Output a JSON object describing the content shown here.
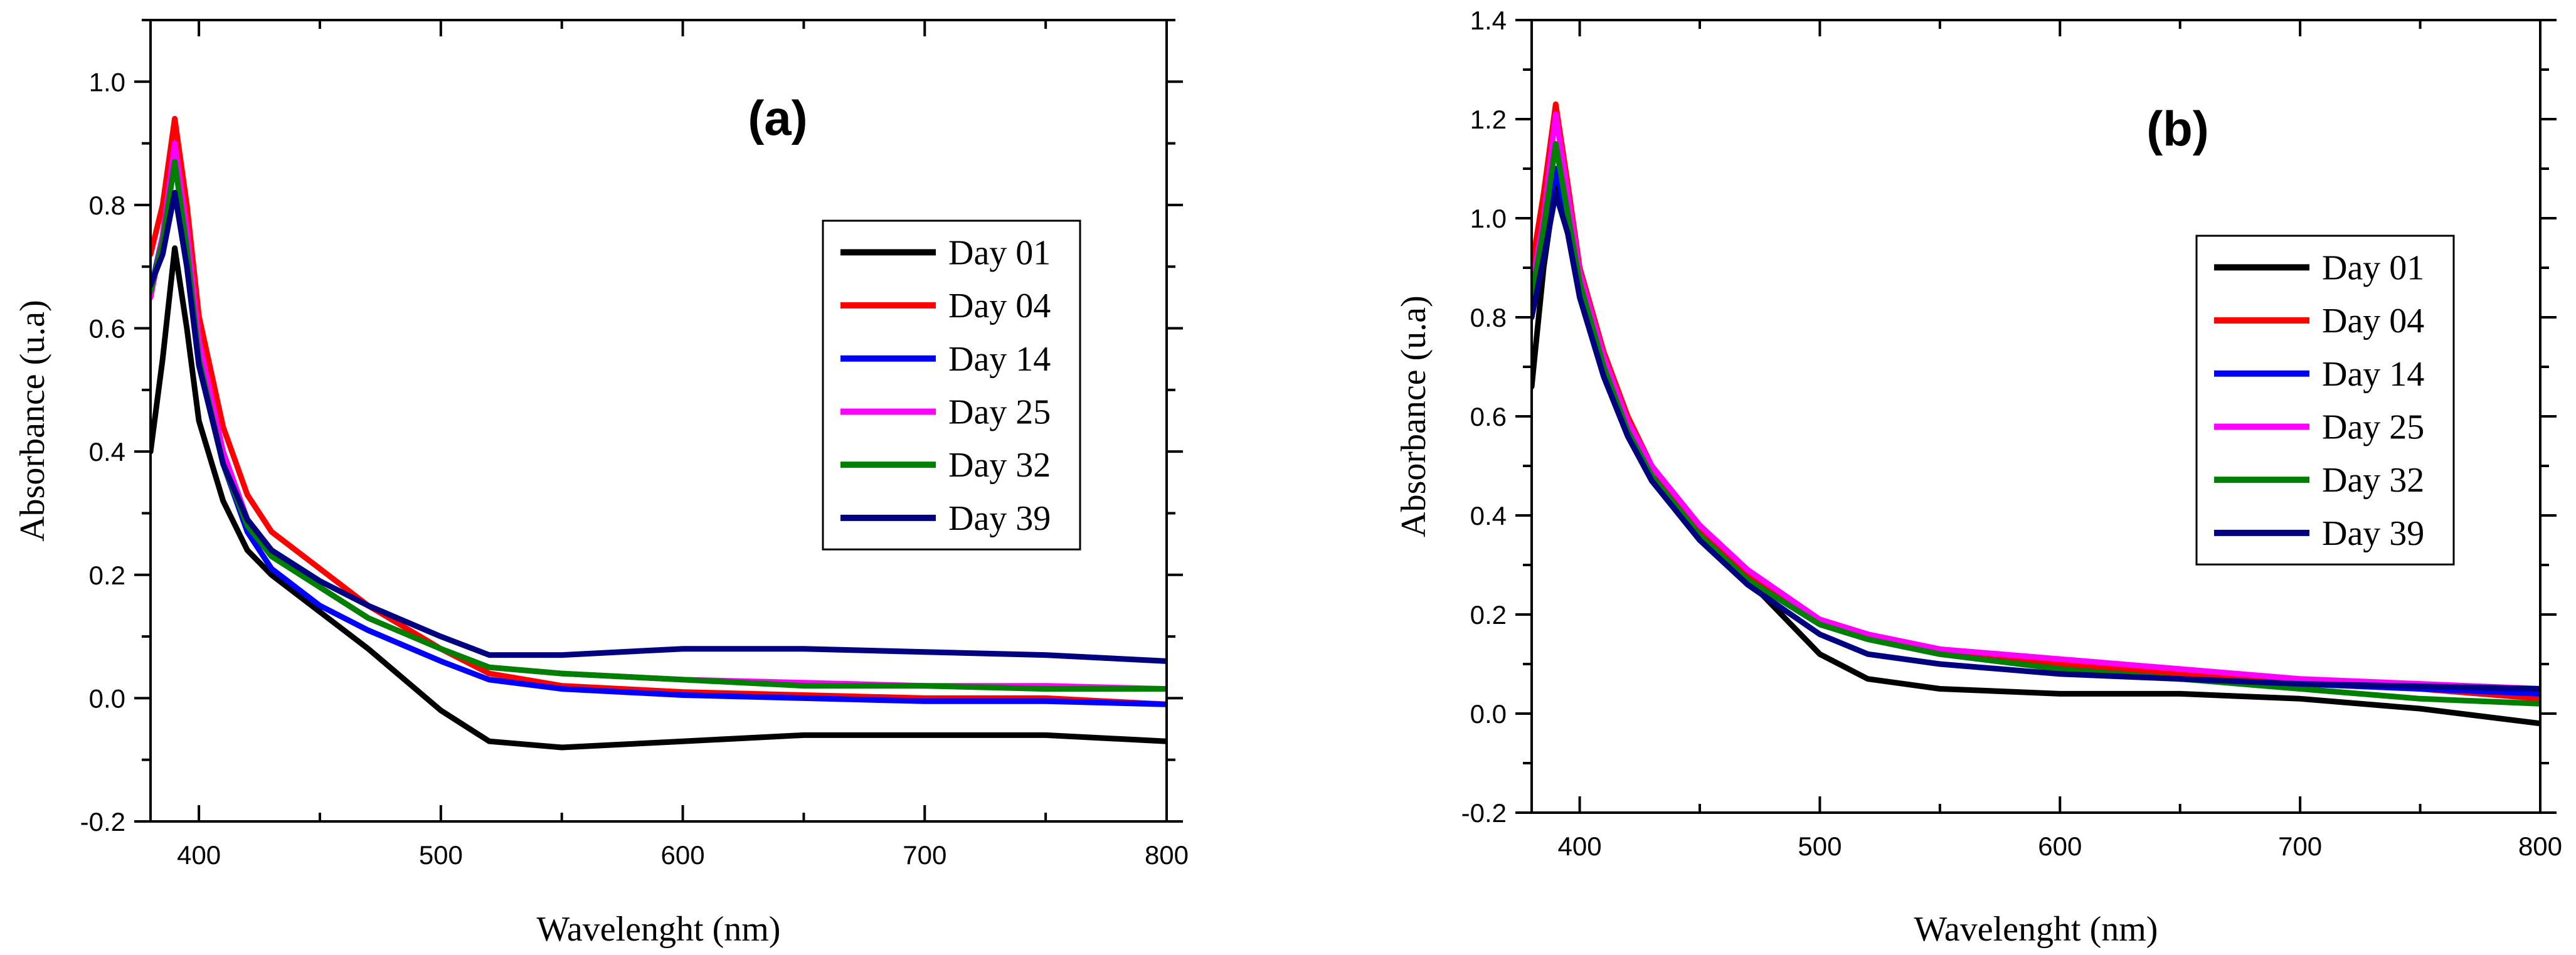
{
  "chart_data": [
    {
      "type": "line",
      "title": "(a)",
      "xlabel": "Wavelenght (nm)",
      "ylabel": "Absorbance (u.a)",
      "xlim": [
        380,
        800
      ],
      "ylim": [
        -0.2,
        1.1
      ],
      "x_ticks": [
        400,
        500,
        600,
        700,
        800
      ],
      "x_tick_labels": [
        "400",
        "500",
        "600",
        "700",
        "800"
      ],
      "y_ticks": [
        -0.2,
        0.0,
        0.2,
        0.4,
        0.6,
        0.8,
        1.0
      ],
      "y_tick_labels": [
        "-0.2",
        "0.0",
        "0.2",
        "0.4",
        "0.6",
        "0.8",
        "1.0"
      ],
      "legend_position": "right",
      "x": [
        380,
        385,
        390,
        395,
        400,
        410,
        420,
        430,
        450,
        470,
        500,
        520,
        550,
        600,
        650,
        700,
        750,
        800
      ],
      "series": [
        {
          "name": "Day 01",
          "color": "#000000",
          "values": [
            0.4,
            0.55,
            0.73,
            0.6,
            0.45,
            0.32,
            0.24,
            0.2,
            0.14,
            0.08,
            -0.02,
            -0.07,
            -0.08,
            -0.07,
            -0.06,
            -0.06,
            -0.06,
            -0.07
          ]
        },
        {
          "name": "Day 04",
          "color": "#ff0000",
          "values": [
            0.72,
            0.8,
            0.94,
            0.8,
            0.62,
            0.44,
            0.33,
            0.27,
            0.21,
            0.15,
            0.08,
            0.04,
            0.02,
            0.01,
            0.005,
            0.0,
            0.0,
            -0.01
          ]
        },
        {
          "name": "Day 14",
          "color": "#0000ff",
          "values": [
            0.66,
            0.75,
            0.9,
            0.75,
            0.56,
            0.38,
            0.27,
            0.21,
            0.15,
            0.11,
            0.06,
            0.03,
            0.015,
            0.005,
            0.0,
            -0.005,
            -0.005,
            -0.01
          ]
        },
        {
          "name": "Day 25",
          "color": "#ff00ff",
          "values": [
            0.65,
            0.75,
            0.9,
            0.76,
            0.58,
            0.4,
            0.29,
            0.24,
            0.18,
            0.13,
            0.08,
            0.05,
            0.04,
            0.03,
            0.025,
            0.02,
            0.02,
            0.015
          ]
        },
        {
          "name": "Day 32",
          "color": "#008000",
          "values": [
            0.66,
            0.74,
            0.87,
            0.73,
            0.55,
            0.38,
            0.28,
            0.23,
            0.18,
            0.13,
            0.08,
            0.05,
            0.04,
            0.03,
            0.02,
            0.02,
            0.015,
            0.015
          ]
        },
        {
          "name": "Day 39",
          "color": "#000080",
          "values": [
            0.67,
            0.72,
            0.82,
            0.7,
            0.54,
            0.38,
            0.29,
            0.24,
            0.19,
            0.15,
            0.1,
            0.07,
            0.07,
            0.08,
            0.08,
            0.075,
            0.07,
            0.06
          ]
        }
      ]
    },
    {
      "type": "line",
      "title": "(b)",
      "xlabel": "Wavelenght (nm)",
      "ylabel": "Absorbance (u.a)",
      "xlim": [
        380,
        800
      ],
      "ylim": [
        -0.2,
        1.4
      ],
      "x_ticks": [
        400,
        500,
        600,
        700,
        800
      ],
      "x_tick_labels": [
        "400",
        "500",
        "600",
        "700",
        "800"
      ],
      "y_ticks": [
        -0.2,
        0.0,
        0.2,
        0.4,
        0.6,
        0.8,
        1.0,
        1.2,
        1.4
      ],
      "y_tick_labels": [
        "-0.2",
        "0.0",
        "0.2",
        "0.4",
        "0.6",
        "0.8",
        "1.0",
        "1.2",
        "1.4"
      ],
      "legend_position": "right",
      "x": [
        380,
        385,
        390,
        395,
        400,
        410,
        420,
        430,
        450,
        470,
        500,
        520,
        550,
        600,
        650,
        700,
        750,
        800
      ],
      "series": [
        {
          "name": "Day 01",
          "color": "#000000",
          "values": [
            0.66,
            0.9,
            1.07,
            0.98,
            0.86,
            0.7,
            0.57,
            0.48,
            0.37,
            0.27,
            0.12,
            0.07,
            0.05,
            0.04,
            0.04,
            0.03,
            0.01,
            -0.02
          ]
        },
        {
          "name": "Day 04",
          "color": "#ff0000",
          "values": [
            0.9,
            1.05,
            1.23,
            1.07,
            0.9,
            0.73,
            0.6,
            0.5,
            0.37,
            0.28,
            0.19,
            0.16,
            0.13,
            0.1,
            0.08,
            0.06,
            0.05,
            0.03
          ]
        },
        {
          "name": "Day 14",
          "color": "#0000ff",
          "values": [
            0.82,
            0.95,
            1.1,
            1.0,
            0.86,
            0.7,
            0.57,
            0.48,
            0.36,
            0.27,
            0.18,
            0.15,
            0.12,
            0.09,
            0.07,
            0.06,
            0.05,
            0.04
          ]
        },
        {
          "name": "Day 25",
          "color": "#ff00ff",
          "values": [
            0.86,
            1.0,
            1.21,
            1.05,
            0.89,
            0.72,
            0.59,
            0.5,
            0.38,
            0.29,
            0.19,
            0.16,
            0.13,
            0.11,
            0.09,
            0.07,
            0.06,
            0.05
          ]
        },
        {
          "name": "Day 32",
          "color": "#008000",
          "values": [
            0.84,
            0.98,
            1.15,
            1.01,
            0.87,
            0.7,
            0.57,
            0.48,
            0.36,
            0.27,
            0.18,
            0.15,
            0.12,
            0.09,
            0.07,
            0.05,
            0.03,
            0.02
          ]
        },
        {
          "name": "Day 39",
          "color": "#000080",
          "values": [
            0.8,
            0.92,
            1.05,
            0.97,
            0.84,
            0.68,
            0.56,
            0.47,
            0.35,
            0.26,
            0.16,
            0.12,
            0.1,
            0.08,
            0.07,
            0.06,
            0.055,
            0.05
          ]
        }
      ]
    }
  ]
}
